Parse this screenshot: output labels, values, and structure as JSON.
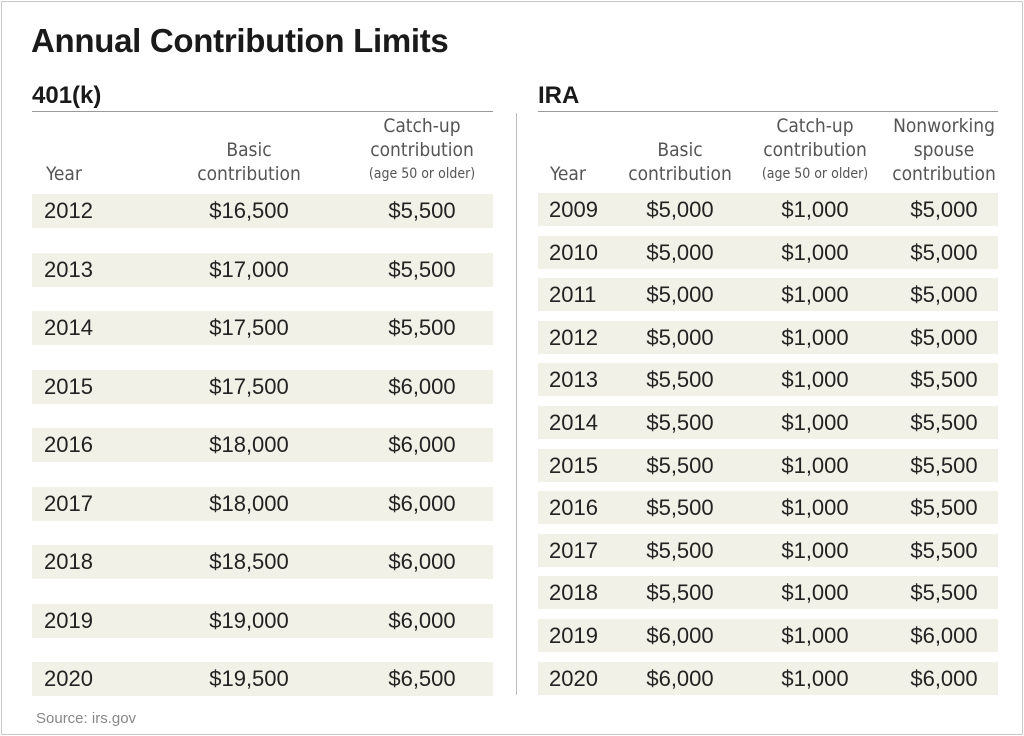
{
  "title": "Annual Contribution Limits",
  "source": "Source: irs.gov",
  "chart_data": [
    {
      "type": "table",
      "title": "401(k)",
      "columns": [
        {
          "lines": [
            "Year"
          ]
        },
        {
          "lines": [
            "Basic",
            "contribution"
          ]
        },
        {
          "lines": [
            "Catch-up",
            "contribution",
            "(age 50 or older)"
          ]
        }
      ],
      "rows": [
        [
          "2012",
          "$16,500",
          "$5,500"
        ],
        [
          "2013",
          "$17,000",
          "$5,500"
        ],
        [
          "2014",
          "$17,500",
          "$5,500"
        ],
        [
          "2015",
          "$17,500",
          "$6,000"
        ],
        [
          "2016",
          "$18,000",
          "$6,000"
        ],
        [
          "2017",
          "$18,000",
          "$6,000"
        ],
        [
          "2018",
          "$18,500",
          "$6,000"
        ],
        [
          "2019",
          "$19,000",
          "$6,000"
        ],
        [
          "2020",
          "$19,500",
          "$6,500"
        ]
      ]
    },
    {
      "type": "table",
      "title": "IRA",
      "columns": [
        {
          "lines": [
            "Year"
          ]
        },
        {
          "lines": [
            "Basic",
            "contribution"
          ]
        },
        {
          "lines": [
            "Catch-up",
            "contribution",
            "(age 50 or older)"
          ]
        },
        {
          "lines": [
            "Nonworking",
            "spouse",
            "contribution"
          ]
        }
      ],
      "rows": [
        [
          "2009",
          "$5,000",
          "$1,000",
          "$5,000"
        ],
        [
          "2010",
          "$5,000",
          "$1,000",
          "$5,000"
        ],
        [
          "2011",
          "$5,000",
          "$1,000",
          "$5,000"
        ],
        [
          "2012",
          "$5,000",
          "$1,000",
          "$5,000"
        ],
        [
          "2013",
          "$5,500",
          "$1,000",
          "$5,500"
        ],
        [
          "2014",
          "$5,500",
          "$1,000",
          "$5,500"
        ],
        [
          "2015",
          "$5,500",
          "$1,000",
          "$5,500"
        ],
        [
          "2016",
          "$5,500",
          "$1,000",
          "$5,500"
        ],
        [
          "2017",
          "$5,500",
          "$1,000",
          "$5,500"
        ],
        [
          "2018",
          "$5,500",
          "$1,000",
          "$5,500"
        ],
        [
          "2019",
          "$6,000",
          "$1,000",
          "$6,000"
        ],
        [
          "2020",
          "$6,000",
          "$1,000",
          "$6,000"
        ]
      ]
    }
  ],
  "colors": {
    "band": "#f2f1e8",
    "header_text": "#555555",
    "source_text": "#888888"
  }
}
